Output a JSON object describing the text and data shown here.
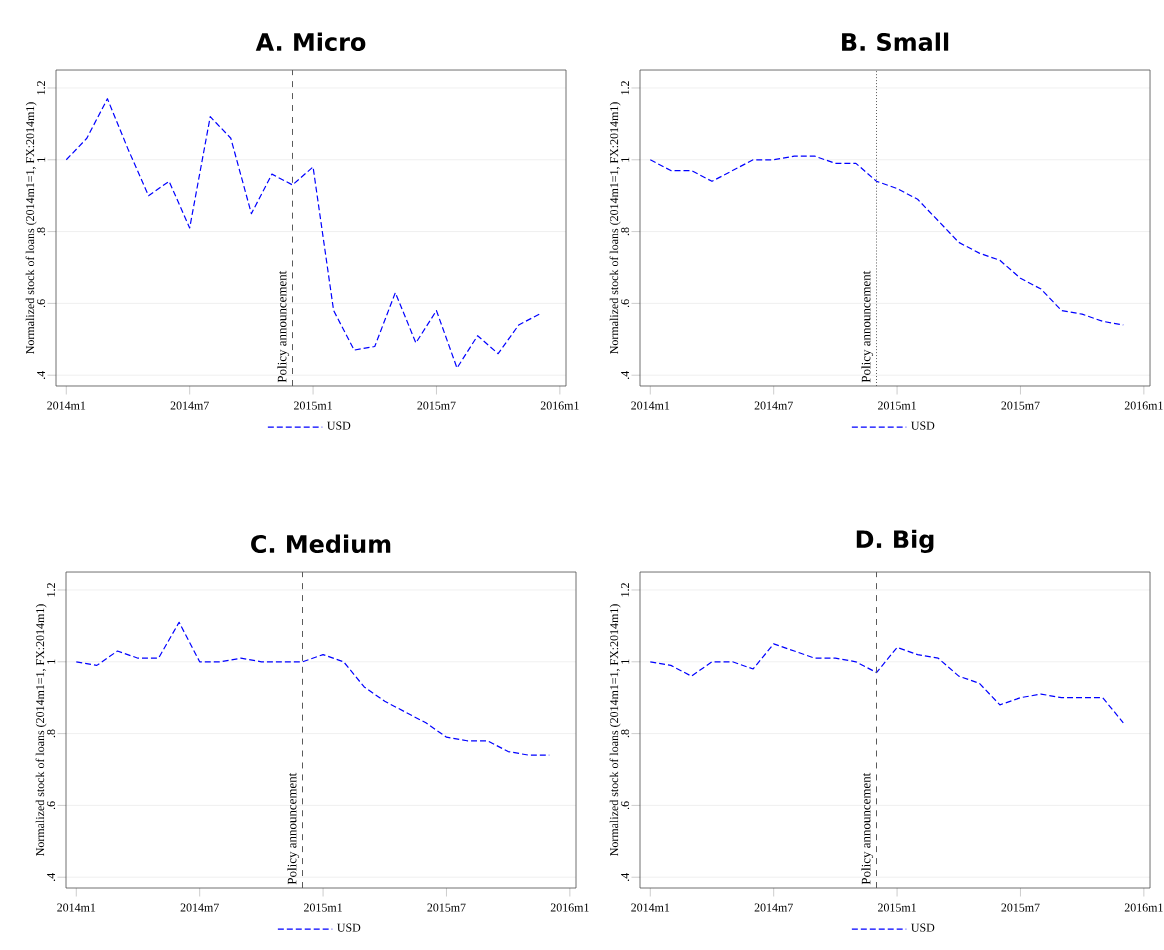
{
  "chart_data": [
    {
      "type": "line",
      "title": "A. Micro",
      "ylabel": "Normalized stock of loans (2014m1=1, FX:2014m1)",
      "categories": [
        "2014m1",
        null,
        null,
        null,
        null,
        null,
        "2014m7",
        null,
        null,
        null,
        null,
        null,
        "2015m1",
        null,
        null,
        null,
        null,
        null,
        "2015m7",
        null,
        null,
        null,
        null,
        null,
        "2016m1"
      ],
      "series": [
        {
          "name": "USD",
          "color": "#0000ff",
          "values": [
            1.0,
            1.06,
            1.17,
            1.03,
            0.9,
            0.94,
            0.81,
            1.12,
            1.06,
            0.85,
            0.96,
            0.93,
            0.98,
            0.58,
            0.47,
            0.48,
            0.63,
            0.49,
            0.58,
            0.42,
            0.51,
            0.46,
            0.54,
            0.57,
            null
          ]
        }
      ],
      "ylim": [
        0.37,
        1.25
      ],
      "yticks": [
        {
          "value": 0.4,
          "label": ".4"
        },
        {
          "value": 0.6,
          "label": ".6"
        },
        {
          "value": 0.8,
          "label": ".8"
        },
        {
          "value": 1,
          "label": "1"
        },
        {
          "value": 1.2,
          "label": "1.2"
        }
      ],
      "grid": "y",
      "legend": "bottom",
      "line_style": "dashed",
      "annotations": [
        "Policy announcement"
      ]
    },
    {
      "type": "line",
      "title": "B. Small",
      "ylabel": "Normalized stock of loans (2014m1=1, FX:2014m1)",
      "categories": [
        "2014m1",
        null,
        null,
        null,
        null,
        null,
        "2014m7",
        null,
        null,
        null,
        null,
        null,
        "2015m1",
        null,
        null,
        null,
        null,
        null,
        "2015m7",
        null,
        null,
        null,
        null,
        null,
        "2016m1"
      ],
      "series": [
        {
          "name": "USD",
          "color": "#0000ff",
          "values": [
            1.0,
            0.97,
            0.97,
            0.94,
            0.97,
            1.0,
            1.0,
            1.01,
            1.01,
            0.99,
            0.99,
            0.94,
            0.92,
            0.89,
            0.83,
            0.77,
            0.74,
            0.72,
            0.67,
            0.64,
            0.58,
            0.57,
            0.55,
            0.54,
            null
          ]
        }
      ],
      "ylim": [
        0.37,
        1.25
      ],
      "yticks": [
        {
          "value": 0.4,
          "label": ".4"
        },
        {
          "value": 0.6,
          "label": ".6"
        },
        {
          "value": 0.8,
          "label": ".8"
        },
        {
          "value": 1,
          "label": "1"
        },
        {
          "value": 1.2,
          "label": "1.2"
        }
      ],
      "grid": "y",
      "legend": "bottom",
      "line_style": "dashed",
      "annotations": [
        "Policy announcement"
      ]
    },
    {
      "type": "line",
      "title": "C. Medium",
      "ylabel": "Normalized stock of loans (2014m1=1, FX:2014m1)",
      "categories": [
        "2014m1",
        null,
        null,
        null,
        null,
        null,
        "2014m7",
        null,
        null,
        null,
        null,
        null,
        "2015m1",
        null,
        null,
        null,
        null,
        null,
        "2015m7",
        null,
        null,
        null,
        null,
        null,
        "2016m1"
      ],
      "series": [
        {
          "name": "USD",
          "color": "#0000ff",
          "values": [
            1.0,
            0.99,
            1.03,
            1.01,
            1.01,
            1.11,
            1.0,
            1.0,
            1.01,
            1.0,
            1.0,
            1.0,
            1.02,
            1.0,
            0.93,
            0.89,
            0.86,
            0.83,
            0.79,
            0.78,
            0.78,
            0.75,
            0.74,
            0.74,
            null
          ]
        }
      ],
      "ylim": [
        0.37,
        1.25
      ],
      "yticks": [
        {
          "value": 0.4,
          "label": ".4"
        },
        {
          "value": 0.6,
          "label": ".6"
        },
        {
          "value": 0.8,
          "label": ".8"
        },
        {
          "value": 1,
          "label": "1"
        },
        {
          "value": 1.2,
          "label": "1.2"
        }
      ],
      "grid": "y",
      "legend": "bottom",
      "line_style": "dashed",
      "annotations": [
        "Policy announcement"
      ]
    },
    {
      "type": "line",
      "title": "D. Big",
      "ylabel": "Normalized stock of loans (2014m1=1, FX:2014m1)",
      "categories": [
        "2014m1",
        null,
        null,
        null,
        null,
        null,
        "2014m7",
        null,
        null,
        null,
        null,
        null,
        "2015m1",
        null,
        null,
        null,
        null,
        null,
        "2015m7",
        null,
        null,
        null,
        null,
        null,
        "2016m1"
      ],
      "series": [
        {
          "name": "USD",
          "color": "#0000ff",
          "values": [
            1.0,
            0.99,
            0.96,
            1.0,
            1.0,
            0.98,
            1.05,
            1.03,
            1.01,
            1.01,
            1.0,
            0.97,
            1.04,
            1.02,
            1.01,
            0.96,
            0.94,
            0.88,
            0.9,
            0.91,
            0.9,
            0.9,
            0.9,
            0.83,
            null
          ]
        }
      ],
      "ylim": [
        0.37,
        1.25
      ],
      "yticks": [
        {
          "value": 0.4,
          "label": ".4"
        },
        {
          "value": 0.6,
          "label": ".6"
        },
        {
          "value": 0.8,
          "label": ".8"
        },
        {
          "value": 1,
          "label": "1"
        },
        {
          "value": 1.2,
          "label": "1.2"
        }
      ],
      "grid": "y",
      "legend": "bottom",
      "line_style": "dashed",
      "annotations": [
        "Policy announcement"
      ]
    }
  ]
}
